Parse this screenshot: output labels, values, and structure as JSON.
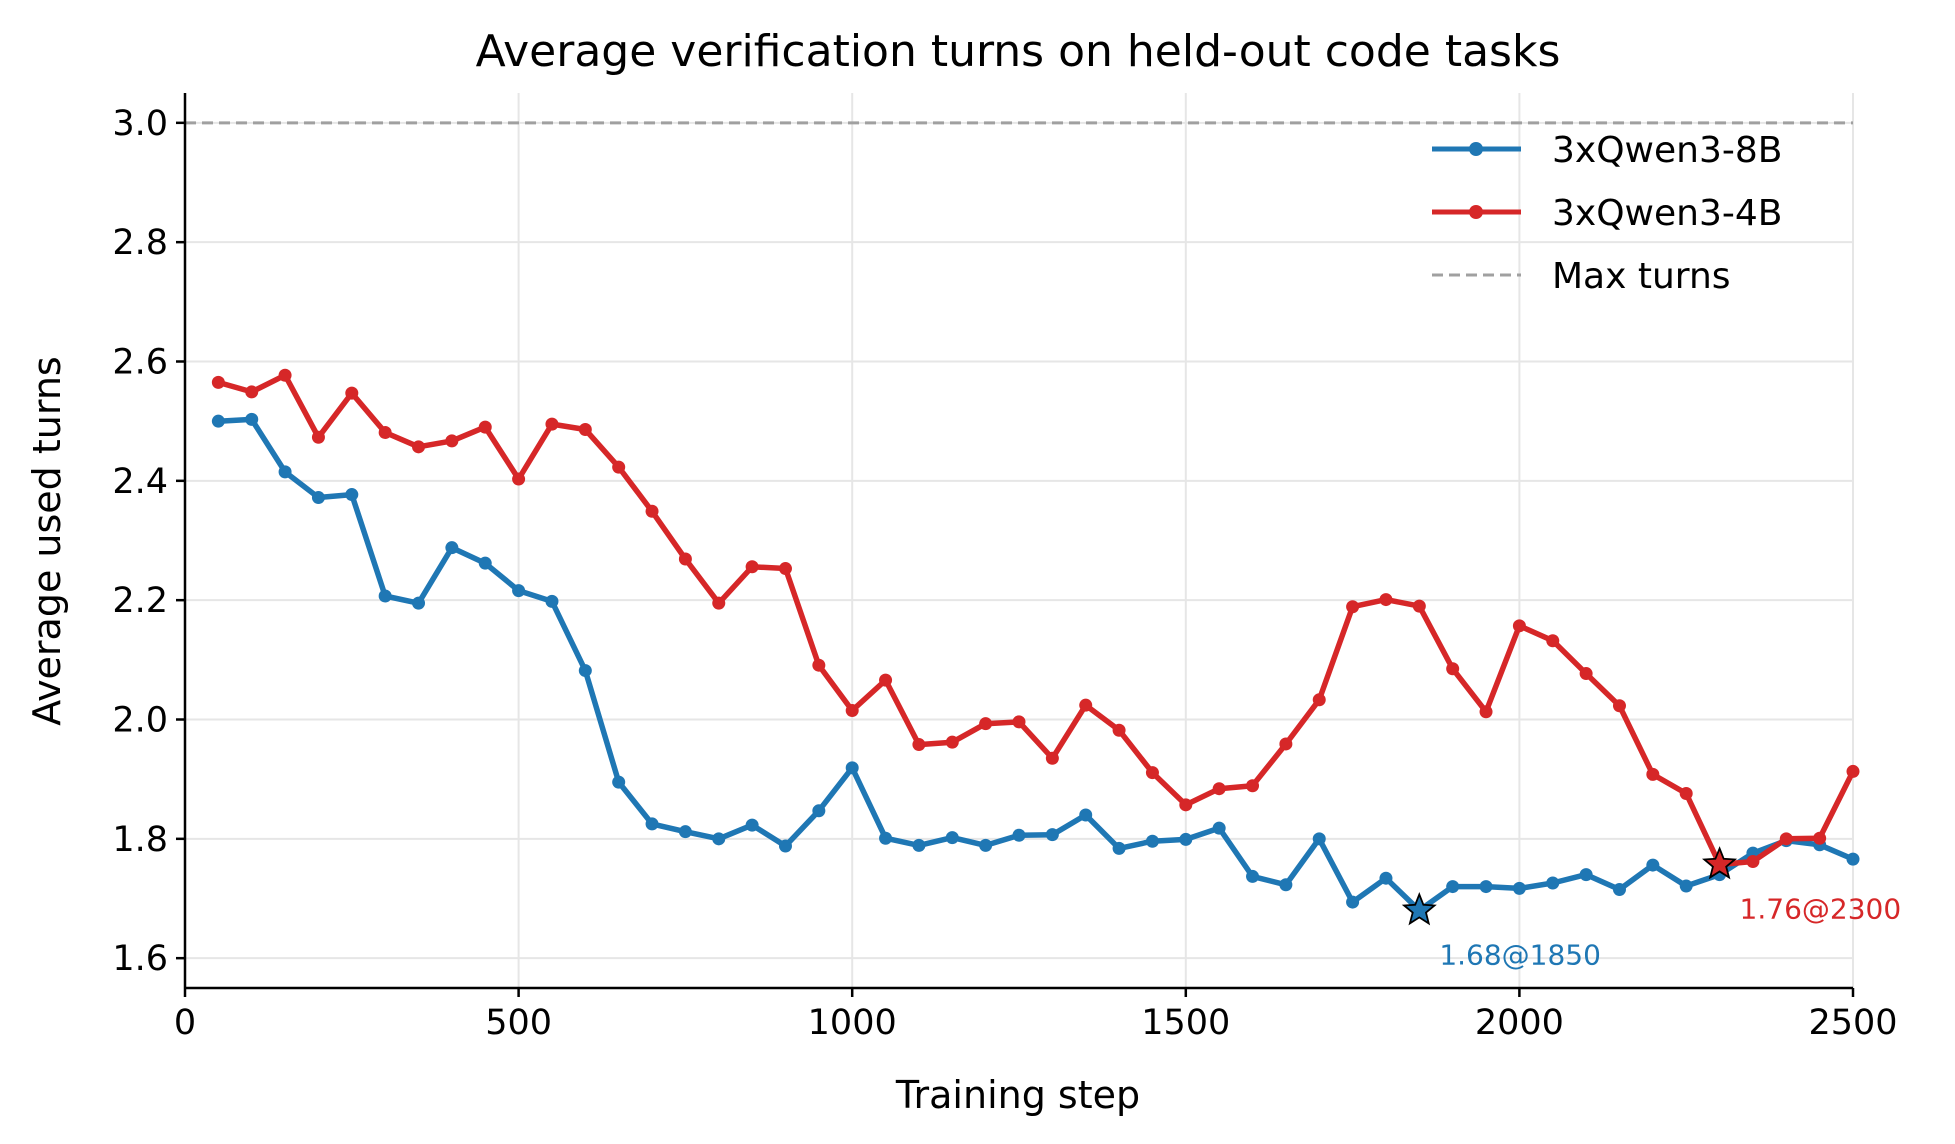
{
  "chart_data": {
    "type": "line",
    "title": "Average verification turns on held-out code tasks",
    "xlabel": "Training step",
    "ylabel": "Average used turns",
    "xlim": [
      0,
      2500
    ],
    "ylim": [
      1.55,
      3.05
    ],
    "xticks": [
      0,
      500,
      1000,
      1500,
      2000,
      2500
    ],
    "xtick_labels": [
      "0",
      "500",
      "1000",
      "1500",
      "2000",
      "2500"
    ],
    "yticks": [
      1.6,
      1.8,
      2.0,
      2.2,
      2.4,
      2.6,
      2.8,
      3.0
    ],
    "ytick_labels": [
      "1.6",
      "1.8",
      "2.0",
      "2.2",
      "2.4",
      "2.6",
      "2.8",
      "3.0"
    ],
    "grid": true,
    "legend_position": "top-right",
    "x": [
      50,
      100,
      150,
      200,
      250,
      300,
      350,
      400,
      450,
      500,
      550,
      600,
      650,
      700,
      750,
      800,
      850,
      900,
      950,
      1000,
      1050,
      1100,
      1150,
      1200,
      1250,
      1300,
      1350,
      1400,
      1450,
      1500,
      1550,
      1600,
      1650,
      1700,
      1750,
      1800,
      1850,
      1900,
      1950,
      2000,
      2050,
      2100,
      2150,
      2200,
      2250,
      2300,
      2350,
      2400,
      2450,
      2500
    ],
    "series": [
      {
        "name": "3xQwen3-8B",
        "color": "#1f77b4",
        "values": [
          2.5,
          2.503,
          2.415,
          2.372,
          2.377,
          2.207,
          2.195,
          2.288,
          2.262,
          2.216,
          2.198,
          2.082,
          1.895,
          1.825,
          1.812,
          1.8,
          1.823,
          1.788,
          1.847,
          1.919,
          1.801,
          1.789,
          1.802,
          1.789,
          1.806,
          1.807,
          1.84,
          1.784,
          1.796,
          1.799,
          1.818,
          1.737,
          1.723,
          1.8,
          1.694,
          1.734,
          1.68,
          1.72,
          1.72,
          1.717,
          1.726,
          1.74,
          1.715,
          1.756,
          1.721,
          1.74,
          1.776,
          1.797,
          1.79,
          1.766
        ]
      },
      {
        "name": "3xQwen3-4B",
        "color": "#d62728",
        "values": [
          2.565,
          2.549,
          2.577,
          2.473,
          2.547,
          2.481,
          2.457,
          2.467,
          2.49,
          2.403,
          2.495,
          2.486,
          2.423,
          2.349,
          2.269,
          2.195,
          2.256,
          2.253,
          2.091,
          2.015,
          2.066,
          1.958,
          1.962,
          1.993,
          1.996,
          1.935,
          2.024,
          1.982,
          1.911,
          1.857,
          1.884,
          1.889,
          1.959,
          2.033,
          2.189,
          2.201,
          2.19,
          2.085,
          2.013,
          2.157,
          2.132,
          2.077,
          2.023,
          1.908,
          1.876,
          1.757,
          1.762,
          1.8,
          1.801,
          1.913
        ]
      }
    ],
    "reference_line": {
      "name": "Max turns",
      "y": 3.0,
      "color": "#a0a0a0",
      "style": "dashed"
    },
    "annotations": [
      {
        "text": "1.68@1850",
        "x": 1850,
        "y": 1.68,
        "series": "3xQwen3-8B",
        "color": "#1f77b4",
        "marker": "star"
      },
      {
        "text": "1.76@2300",
        "x": 2300,
        "y": 1.757,
        "series": "3xQwen3-4B",
        "color": "#d62728",
        "marker": "star"
      }
    ]
  }
}
